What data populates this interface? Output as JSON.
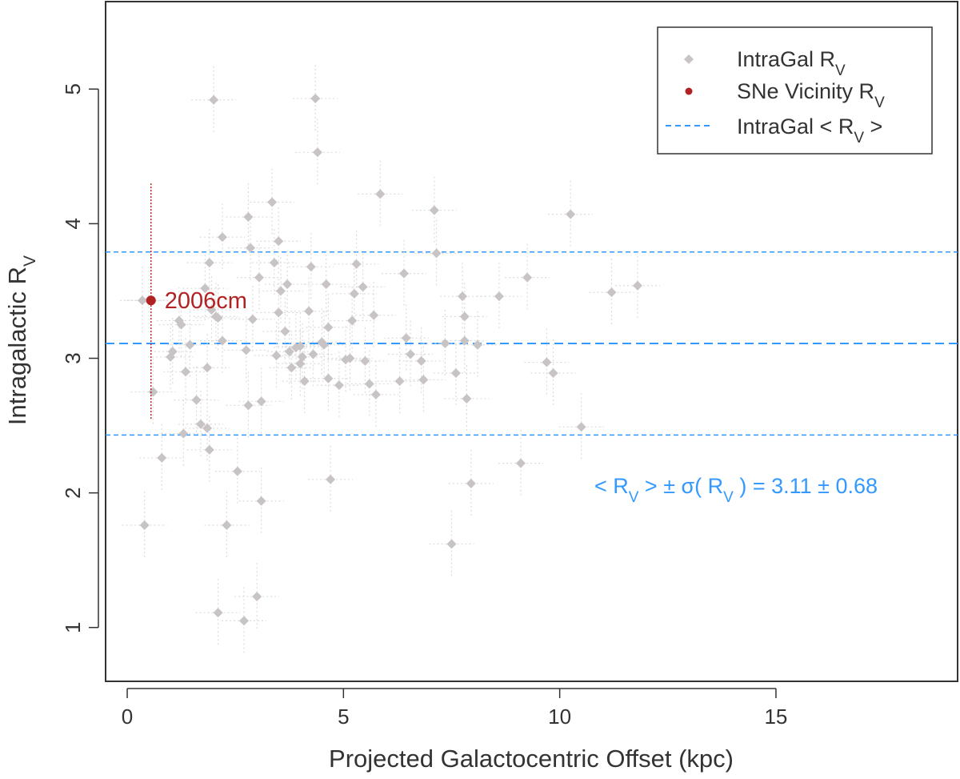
{
  "chart_data": {
    "type": "scatter",
    "title": "",
    "xlabel": "Projected Galactocentric Offset (kpc)",
    "ylabel": {
      "main": "Intragalactic R",
      "sub": "V"
    },
    "xlim": [
      -0.5,
      19.2
    ],
    "ylim": [
      0.6,
      5.65
    ],
    "xticks": [
      0,
      5,
      10,
      15
    ],
    "yticks": [
      1,
      2,
      3,
      4,
      5
    ],
    "grid": false,
    "legend_position": "top-right",
    "colors": {
      "intragal": "#c8c3c4",
      "intragal_err": "#dcdcdc",
      "sne": "#b22222",
      "mean_line": "#3399ff",
      "annotation": "#3399ff"
    },
    "legend": [
      {
        "label": "IntraGal R",
        "sub": "V",
        "suffix": "",
        "marker": "diamond"
      },
      {
        "label": "SNe Vicinity R",
        "sub": "V",
        "suffix": "",
        "marker": "dot"
      },
      {
        "label": "IntraGal < R",
        "sub": "V",
        "suffix": " >",
        "marker": "dashed-line"
      }
    ],
    "mean": 3.11,
    "sigma": 0.68,
    "mean_lines": [
      2.43,
      3.11,
      3.79
    ],
    "annotation": {
      "prefix": "< R",
      "sub1": "V",
      "middle": " > ± σ( R",
      "sub2": "V",
      "suffix": " ) =  3.11 ± 0.68",
      "x": 15.9,
      "y": 2.13
    },
    "series": [
      {
        "name": "IntraGal R_V",
        "marker": "diamond",
        "points": [
          [
            0.4,
            1.76
          ],
          [
            0.35,
            3.43
          ],
          [
            0.5,
            3.43
          ],
          [
            0.6,
            2.75
          ],
          [
            0.8,
            2.26
          ],
          [
            1.0,
            3.01
          ],
          [
            1.05,
            3.05
          ],
          [
            1.2,
            3.28
          ],
          [
            1.25,
            3.25
          ],
          [
            1.3,
            2.44
          ],
          [
            1.35,
            2.9
          ],
          [
            1.45,
            3.1
          ],
          [
            1.6,
            2.69
          ],
          [
            1.7,
            2.51
          ],
          [
            1.8,
            3.52
          ],
          [
            1.85,
            2.48
          ],
          [
            1.85,
            2.93
          ],
          [
            1.9,
            3.71
          ],
          [
            1.9,
            2.32
          ],
          [
            1.95,
            3.36
          ],
          [
            2.0,
            4.92
          ],
          [
            2.05,
            3.31
          ],
          [
            2.1,
            3.3
          ],
          [
            2.1,
            1.11
          ],
          [
            2.2,
            3.9
          ],
          [
            2.2,
            3.13
          ],
          [
            2.3,
            1.76
          ],
          [
            2.55,
            2.16
          ],
          [
            2.7,
            1.05
          ],
          [
            2.75,
            3.06
          ],
          [
            2.8,
            2.65
          ],
          [
            2.8,
            4.05
          ],
          [
            2.85,
            3.82
          ],
          [
            2.9,
            3.29
          ],
          [
            3.0,
            1.23
          ],
          [
            3.05,
            3.6
          ],
          [
            3.1,
            2.68
          ],
          [
            3.1,
            1.94
          ],
          [
            3.35,
            4.16
          ],
          [
            3.4,
            3.71
          ],
          [
            3.45,
            3.02
          ],
          [
            3.5,
            3.87
          ],
          [
            3.55,
            3.5
          ],
          [
            3.5,
            3.34
          ],
          [
            3.65,
            3.2
          ],
          [
            3.7,
            3.55
          ],
          [
            3.75,
            3.05
          ],
          [
            3.8,
            2.93
          ],
          [
            3.9,
            3.08
          ],
          [
            4.0,
            3.09
          ],
          [
            4.0,
            2.96
          ],
          [
            4.05,
            3.01
          ],
          [
            4.1,
            2.83
          ],
          [
            4.2,
            3.35
          ],
          [
            4.25,
            3.68
          ],
          [
            4.3,
            3.03
          ],
          [
            4.35,
            4.93
          ],
          [
            4.4,
            4.53
          ],
          [
            4.5,
            3.12
          ],
          [
            4.55,
            3.1
          ],
          [
            4.6,
            3.55
          ],
          [
            4.65,
            3.23
          ],
          [
            4.65,
            2.85
          ],
          [
            4.7,
            2.1
          ],
          [
            4.9,
            2.8
          ],
          [
            5.05,
            2.99
          ],
          [
            5.15,
            3.0
          ],
          [
            5.2,
            3.28
          ],
          [
            5.25,
            3.48
          ],
          [
            5.3,
            3.7
          ],
          [
            5.45,
            3.53
          ],
          [
            5.5,
            2.98
          ],
          [
            5.6,
            2.81
          ],
          [
            5.7,
            3.32
          ],
          [
            5.75,
            2.73
          ],
          [
            5.85,
            4.22
          ],
          [
            6.3,
            2.83
          ],
          [
            6.4,
            3.63
          ],
          [
            6.45,
            3.15
          ],
          [
            6.55,
            3.03
          ],
          [
            6.8,
            2.98
          ],
          [
            6.85,
            2.84
          ],
          [
            7.1,
            4.1
          ],
          [
            7.15,
            3.78
          ],
          [
            7.35,
            3.11
          ],
          [
            7.5,
            1.62
          ],
          [
            7.6,
            2.89
          ],
          [
            7.75,
            3.46
          ],
          [
            7.8,
            3.31
          ],
          [
            7.8,
            3.13
          ],
          [
            7.85,
            2.7
          ],
          [
            7.95,
            2.07
          ],
          [
            8.1,
            3.1
          ],
          [
            8.6,
            3.46
          ],
          [
            9.1,
            2.22
          ],
          [
            9.25,
            3.6
          ],
          [
            9.7,
            2.97
          ],
          [
            9.85,
            2.89
          ],
          [
            10.25,
            4.07
          ],
          [
            10.5,
            2.49
          ],
          [
            11.2,
            3.49
          ],
          [
            11.8,
            3.54
          ]
        ]
      },
      {
        "name": "SNe Vicinity R_V",
        "marker": "dot",
        "points": [
          [
            0.55,
            3.43
          ]
        ],
        "errorbar": [
          2.55,
          4.3
        ],
        "labels": [
          "2006cm"
        ]
      }
    ]
  }
}
